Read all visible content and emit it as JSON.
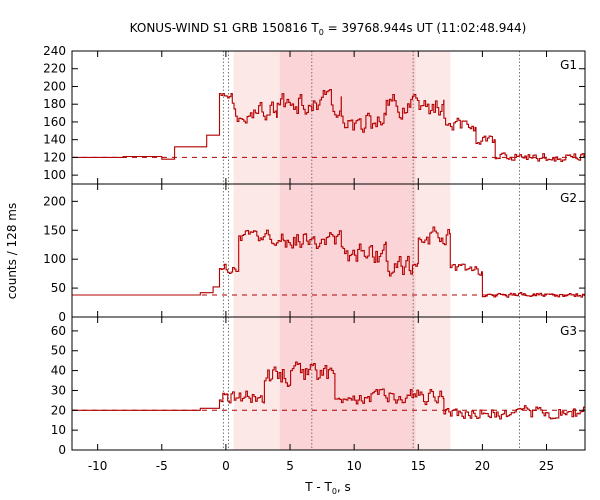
{
  "chart_data": {
    "type": "line",
    "title_prefix": "KONUS-WIND S1 GRB 150816 T",
    "title_sub": "0",
    "title_suffix": " = 39768.944s UT (11:02:48.944)",
    "ylabel": "counts / 128 ms",
    "xlabel_prefix": "T - T",
    "xlabel_sub": "0",
    "xlabel_suffix": ", s",
    "xlim": [
      -12,
      28
    ],
    "xticks": [
      -10,
      -5,
      0,
      5,
      10,
      15,
      20,
      25
    ],
    "shaded_intervals": [
      {
        "x0": 0.6,
        "x1": 17.5,
        "color": "#fde8e8"
      },
      {
        "x0": 4.2,
        "x1": 14.8,
        "color": "#fbd4d8"
      }
    ],
    "vlines_dotted": [
      -0.2,
      0.2,
      6.7,
      14.6,
      22.9
    ],
    "series_color": "#b30000",
    "panels": [
      {
        "name": "G1",
        "ylim": [
          90,
          240
        ],
        "yticks": [
          100,
          120,
          140,
          160,
          180,
          200,
          220,
          240
        ],
        "background_level": 120,
        "pre_steps": [
          [
            -12,
            120
          ],
          [
            -8,
            121
          ],
          [
            -5,
            118
          ],
          [
            -4,
            132
          ],
          [
            -1.5,
            132
          ],
          [
            -1.5,
            145
          ],
          [
            -0.5,
            145
          ]
        ],
        "segments": [
          {
            "from": -0.5,
            "to": 0.5,
            "level": 187,
            "amp": 10
          },
          {
            "from": 0.5,
            "to": 4.0,
            "level": 172,
            "amp": 17
          },
          {
            "from": 4.0,
            "to": 9.0,
            "level": 182,
            "amp": 20
          },
          {
            "from": 9.0,
            "to": 12.5,
            "level": 160,
            "amp": 19
          },
          {
            "from": 12.5,
            "to": 17.0,
            "level": 178,
            "amp": 19
          },
          {
            "from": 17.0,
            "to": 19.5,
            "level": 158,
            "amp": 13
          },
          {
            "from": 19.5,
            "to": 21.0,
            "level": 140,
            "amp": 9
          },
          {
            "from": 21.0,
            "to": 28.0,
            "level": 121,
            "amp": 8
          }
        ]
      },
      {
        "name": "G2",
        "ylim": [
          0,
          230
        ],
        "yticks": [
          0,
          50,
          100,
          150,
          200
        ],
        "background_level": 38,
        "pre_steps": [
          [
            -12,
            38
          ],
          [
            -5,
            38
          ],
          [
            -2,
            42
          ],
          [
            -1.0,
            52
          ],
          [
            -0.5,
            52
          ]
        ],
        "segments": [
          {
            "from": -0.5,
            "to": 1.0,
            "level": 85,
            "amp": 15
          },
          {
            "from": 1.0,
            "to": 4.5,
            "level": 140,
            "amp": 18
          },
          {
            "from": 4.5,
            "to": 9.0,
            "level": 135,
            "amp": 25
          },
          {
            "from": 9.0,
            "to": 12.5,
            "level": 110,
            "amp": 30
          },
          {
            "from": 12.5,
            "to": 15.0,
            "level": 85,
            "amp": 30
          },
          {
            "from": 15.0,
            "to": 17.5,
            "level": 140,
            "amp": 25
          },
          {
            "from": 17.5,
            "to": 20.0,
            "level": 80,
            "amp": 15
          },
          {
            "from": 20.0,
            "to": 28.0,
            "level": 38,
            "amp": 6
          }
        ]
      },
      {
        "name": "G3",
        "ylim": [
          0,
          67
        ],
        "yticks": [
          0,
          10,
          20,
          30,
          40,
          50,
          60
        ],
        "background_level": 20,
        "pre_steps": [
          [
            -12,
            20
          ],
          [
            -5,
            20
          ],
          [
            -2,
            21
          ],
          [
            -0.5,
            22
          ]
        ],
        "segments": [
          {
            "from": -0.5,
            "to": 3.0,
            "level": 27,
            "amp": 6
          },
          {
            "from": 3.0,
            "to": 8.5,
            "level": 37,
            "amp": 9
          },
          {
            "from": 8.5,
            "to": 14.0,
            "level": 27,
            "amp": 6
          },
          {
            "from": 14.0,
            "to": 17.0,
            "level": 28,
            "amp": 7
          },
          {
            "from": 17.0,
            "to": 28.0,
            "level": 19,
            "amp": 5
          }
        ]
      }
    ]
  }
}
